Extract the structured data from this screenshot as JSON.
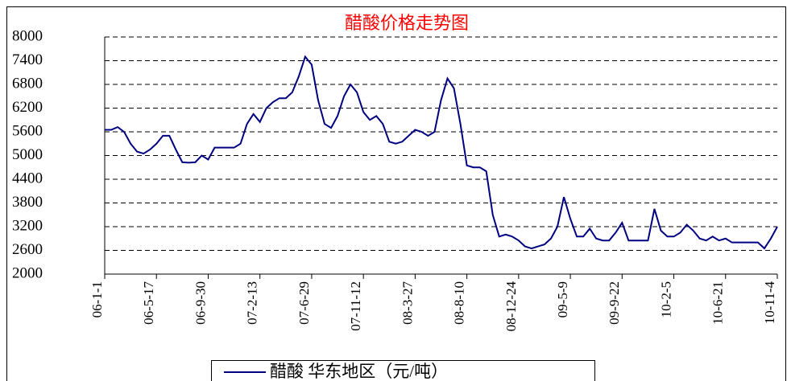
{
  "chart_data": {
    "type": "line",
    "title": "醋酸价格走势图",
    "categories": [
      "06-1-1",
      null,
      null,
      null,
      null,
      null,
      null,
      null,
      "06-5-17",
      null,
      null,
      null,
      null,
      null,
      null,
      null,
      "06-9-30",
      null,
      null,
      null,
      null,
      null,
      null,
      null,
      "07-2-13",
      null,
      null,
      null,
      null,
      null,
      null,
      null,
      "07-6-29",
      null,
      null,
      null,
      null,
      null,
      null,
      null,
      "07-11-12",
      null,
      null,
      null,
      null,
      null,
      null,
      null,
      "08-3-27",
      null,
      null,
      null,
      null,
      null,
      null,
      null,
      "08-8-10",
      null,
      null,
      null,
      null,
      null,
      null,
      null,
      "08-12-24",
      null,
      null,
      null,
      null,
      null,
      null,
      null,
      "09-5-9",
      null,
      null,
      null,
      null,
      null,
      null,
      null,
      "09-9-22",
      null,
      null,
      null,
      null,
      null,
      null,
      null,
      "10-2-5",
      null,
      null,
      null,
      null,
      null,
      null,
      null,
      "10-6-21",
      null,
      null,
      null,
      null,
      null,
      null,
      null,
      "10-11-4"
    ],
    "series": [
      {
        "name": "醋酸 华东地区（元/吨）",
        "color": "#000080",
        "values": [
          5650,
          5650,
          5720,
          5600,
          5300,
          5100,
          5050,
          5150,
          5300,
          5500,
          5500,
          5150,
          4830,
          4820,
          4830,
          5000,
          4900,
          5200,
          5200,
          5200,
          5200,
          5300,
          5800,
          6050,
          5850,
          6200,
          6350,
          6450,
          6450,
          6600,
          7000,
          7500,
          7300,
          6400,
          5800,
          5700,
          6000,
          6500,
          6800,
          6600,
          6100,
          5900,
          6000,
          5800,
          5350,
          5300,
          5350,
          5500,
          5650,
          5600,
          5500,
          5600,
          6400,
          6950,
          6700,
          5800,
          4750,
          4700,
          4700,
          4600,
          3500,
          2950,
          3000,
          2950,
          2850,
          2700,
          2650,
          2700,
          2750,
          2900,
          3200,
          3950,
          3400,
          2950,
          2950,
          3150,
          2900,
          2850,
          2850,
          3050,
          3300,
          2850,
          2850,
          2850,
          2850,
          3650,
          3100,
          2950,
          2950,
          3050,
          3250,
          3100,
          2900,
          2850,
          2950,
          2850,
          2900,
          2800,
          2800,
          2800,
          2800,
          2800,
          2650,
          2900,
          3200
        ]
      }
    ],
    "ylim": [
      2000,
      8000
    ],
    "yticks": [
      2000,
      2600,
      3200,
      3800,
      4400,
      5000,
      5600,
      6200,
      6800,
      7400,
      8000
    ],
    "grid": true
  }
}
